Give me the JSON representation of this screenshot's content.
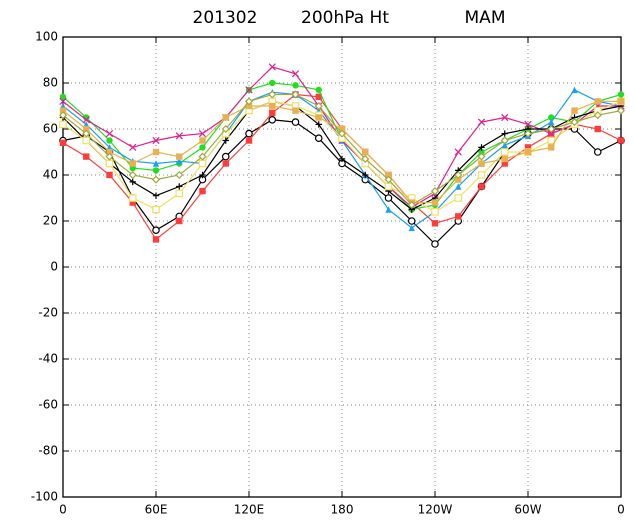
{
  "chart_data": {
    "type": "line",
    "title": [
      "201302",
      "200hPa Ht",
      "MAM"
    ],
    "x": [
      0,
      15,
      30,
      45,
      60,
      75,
      90,
      105,
      120,
      135,
      150,
      165,
      180,
      195,
      210,
      225,
      240,
      255,
      270,
      285,
      300,
      315,
      330,
      345,
      360
    ],
    "xlim": [
      0,
      360
    ],
    "xticks": [
      0,
      {
        "value": 60,
        "label": "60E"
      },
      {
        "value": 120,
        "label": "120E"
      },
      180,
      {
        "value": 240,
        "label": "120W"
      },
      {
        "value": 300,
        "label": "60W"
      },
      {
        "value": 360,
        "label": "0"
      }
    ],
    "ylim": [
      -100,
      100
    ],
    "yticks": [
      -100,
      -80,
      -60,
      -40,
      -20,
      0,
      20,
      40,
      60,
      80,
      100
    ],
    "grid": true,
    "series": [
      {
        "color": "#000000",
        "marker": "circle-open",
        "values": [
          55,
          57,
          50,
          30,
          16,
          22,
          38,
          48,
          58,
          64,
          63,
          56,
          45,
          38,
          30,
          20,
          10,
          20,
          35,
          50,
          58,
          60,
          60,
          50,
          55
        ]
      },
      {
        "color": "#ff3c3c",
        "marker": "square",
        "values": [
          54,
          48,
          40,
          28,
          12,
          20,
          33,
          45,
          55,
          67,
          75,
          74,
          60,
          50,
          40,
          28,
          19,
          22,
          35,
          45,
          52,
          58,
          62,
          60,
          55
        ]
      },
      {
        "color": "#22dd22",
        "marker": "circle",
        "values": [
          74,
          65,
          55,
          43,
          42,
          45,
          52,
          65,
          77,
          80,
          79,
          77,
          55,
          45,
          35,
          25,
          27,
          40,
          50,
          55,
          60,
          65,
          63,
          72,
          75
        ]
      },
      {
        "color": "#1aa0f0",
        "marker": "triangle",
        "values": [
          70,
          62,
          52,
          46,
          45,
          46,
          45,
          58,
          72,
          76,
          75,
          68,
          55,
          40,
          25,
          17,
          24,
          35,
          45,
          53,
          57,
          63,
          77,
          72,
          70
        ]
      },
      {
        "color": "#e0208c",
        "marker": "x",
        "values": [
          72,
          64,
          58,
          52,
          55,
          57,
          58,
          65,
          77,
          87,
          84,
          70,
          55,
          45,
          35,
          26,
          32,
          50,
          63,
          65,
          62,
          58,
          62,
          70,
          70
        ]
      },
      {
        "color": "#000000",
        "marker": "plus",
        "values": [
          65,
          55,
          45,
          37,
          31,
          35,
          40,
          55,
          68,
          72,
          70,
          62,
          47,
          40,
          33,
          25,
          30,
          42,
          52,
          58,
          60,
          60,
          65,
          68,
          70
        ]
      },
      {
        "color": "#f0e060",
        "marker": "square-open",
        "values": [
          62,
          55,
          45,
          30,
          25,
          32,
          45,
          58,
          68,
          72,
          70,
          66,
          56,
          45,
          35,
          30,
          24,
          30,
          40,
          50,
          50,
          55,
          62,
          68,
          72
        ]
      },
      {
        "color": "#e8b050",
        "marker": "square",
        "values": [
          68,
          60,
          50,
          45,
          50,
          48,
          55,
          65,
          70,
          70,
          68,
          65,
          60,
          50,
          40,
          28,
          28,
          38,
          45,
          47,
          50,
          52,
          68,
          72,
          72
        ]
      },
      {
        "color": "#a0a840",
        "marker": "diamond-open",
        "values": [
          66,
          58,
          48,
          40,
          38,
          40,
          48,
          60,
          72,
          75,
          75,
          70,
          58,
          47,
          38,
          27,
          33,
          40,
          48,
          55,
          58,
          60,
          63,
          66,
          68
        ]
      }
    ]
  }
}
